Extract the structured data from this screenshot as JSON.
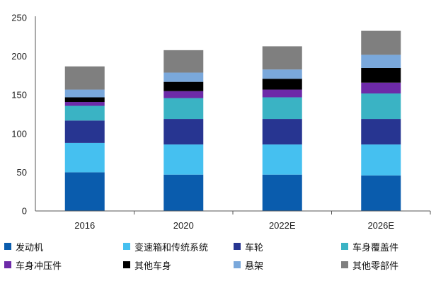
{
  "chart_data": {
    "type": "bar",
    "stacked": true,
    "categories": [
      "2016",
      "2020",
      "2022E",
      "2026E"
    ],
    "ylim": [
      0,
      250
    ],
    "yticks": [
      0,
      50,
      100,
      150,
      200,
      250
    ],
    "grid": false,
    "legend_position": "bottom",
    "series": [
      {
        "name": "发动机",
        "color": "#0A5CAD",
        "values": [
          50,
          47,
          47,
          46
        ]
      },
      {
        "name": "变速箱和传统系统",
        "color": "#45C0F0",
        "values": [
          38,
          39,
          39,
          40
        ]
      },
      {
        "name": "车轮",
        "color": "#273591",
        "values": [
          29,
          33,
          33,
          33
        ]
      },
      {
        "name": "车身覆盖件",
        "color": "#3AB3C4",
        "values": [
          19,
          27,
          28,
          33
        ]
      },
      {
        "name": "车身冲压件",
        "color": "#6D2AA8",
        "values": [
          5,
          9,
          10,
          14
        ]
      },
      {
        "name": "其他车身",
        "color": "#000000",
        "values": [
          6,
          12,
          14,
          19
        ]
      },
      {
        "name": "悬架",
        "color": "#7AA8DB",
        "values": [
          10,
          12,
          12,
          17
        ]
      },
      {
        "name": "其他零部件",
        "color": "#7F7F7F",
        "values": [
          30,
          29,
          30,
          31
        ]
      }
    ]
  }
}
